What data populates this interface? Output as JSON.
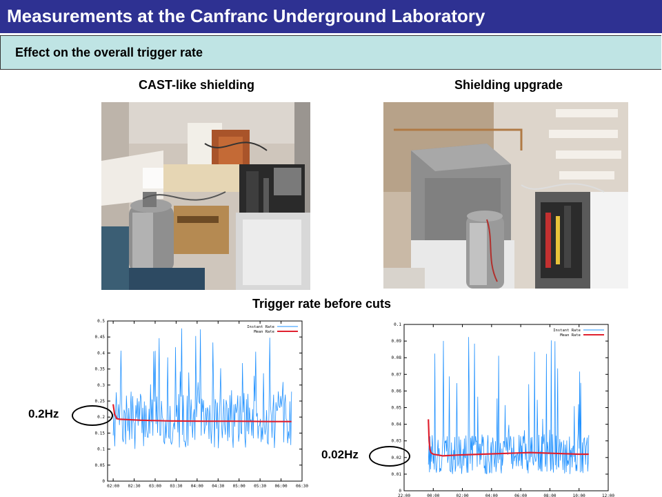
{
  "header": {
    "title": "Measurements at the Canfranc Underground Laboratory",
    "subtitle": "Effect on the overall trigger rate"
  },
  "captions": {
    "left_photo": "CAST-like shielding",
    "right_photo": "Shielding upgrade",
    "plots": "Trigger rate before cuts"
  },
  "annotations": {
    "left": "0.2Hz",
    "right": "0.02Hz"
  },
  "colors": {
    "title_bg": "#2e3192",
    "subtitle_bg": "#bfe4e4",
    "instant_rate": "#1e90ff",
    "mean_rate": "#e0202e"
  },
  "chart_data": [
    {
      "type": "line",
      "title": "",
      "xlabel": "",
      "ylabel": "",
      "legend_position": "top-right",
      "grid": false,
      "xlim": [
        112,
        390
      ],
      "ylim": [
        0,
        0.5
      ],
      "x_ticks": [
        "02:00",
        "02:30",
        "03:00",
        "03:30",
        "04:00",
        "04:30",
        "05:00",
        "05:30",
        "06:00",
        "06:30"
      ],
      "x_tick_minutes": [
        120,
        150,
        180,
        210,
        240,
        270,
        300,
        330,
        360,
        390
      ],
      "y_ticks": [
        "0",
        "0.05",
        "0.1",
        "0.15",
        "0.2",
        "0.25",
        "0.3",
        "0.35",
        "0.4",
        "0.45",
        "0.5"
      ],
      "y_tick_values": [
        0,
        0.05,
        0.1,
        0.15,
        0.2,
        0.25,
        0.3,
        0.35,
        0.4,
        0.45,
        0.5
      ],
      "series": [
        {
          "name": "Instant Rate",
          "color": "#1e90ff",
          "x_start": 120,
          "x_end": 375,
          "n": 230,
          "base": 0.19,
          "spread": 0.09,
          "spikes_max": 0.48,
          "seed": 7
        },
        {
          "name": "Mean Rate",
          "color": "#e0202e",
          "x": [
            120,
            122,
            125,
            130,
            140,
            160,
            200,
            250,
            300,
            350,
            375
          ],
          "y": [
            0.24,
            0.21,
            0.195,
            0.193,
            0.192,
            0.19,
            0.188,
            0.187,
            0.187,
            0.186,
            0.186
          ]
        }
      ]
    },
    {
      "type": "line",
      "title": "",
      "xlabel": "",
      "ylabel": "",
      "legend_position": "top-right",
      "grid": false,
      "xlim": [
        -120,
        720
      ],
      "ylim": [
        0,
        0.1
      ],
      "x_ticks": [
        "22:00",
        "00:00",
        "02:00",
        "04:00",
        "06:00",
        "08:00",
        "10:00",
        "12:00"
      ],
      "x_tick_minutes": [
        -120,
        0,
        120,
        240,
        360,
        480,
        600,
        720
      ],
      "y_ticks": [
        "0",
        "0.01",
        "0.02",
        "0.03",
        "0.04",
        "0.05",
        "0.06",
        "0.07",
        "0.08",
        "0.09",
        "0.1"
      ],
      "y_tick_values": [
        0,
        0.01,
        0.02,
        0.03,
        0.04,
        0.05,
        0.06,
        0.07,
        0.08,
        0.09,
        0.1
      ],
      "series": [
        {
          "name": "Instant Rate",
          "color": "#1e90ff",
          "x_start": -20,
          "x_end": 640,
          "n": 300,
          "base": 0.022,
          "spread": 0.012,
          "spikes_max": 0.1,
          "seed": 13
        },
        {
          "name": "Mean Rate",
          "color": "#e0202e",
          "x": [
            -20,
            -17,
            -14,
            -10,
            0,
            40,
            100,
            200,
            300,
            400,
            500,
            600,
            640
          ],
          "y": [
            0.043,
            0.03,
            0.025,
            0.023,
            0.022,
            0.021,
            0.0215,
            0.022,
            0.0225,
            0.023,
            0.0225,
            0.022,
            0.022
          ]
        }
      ]
    }
  ]
}
